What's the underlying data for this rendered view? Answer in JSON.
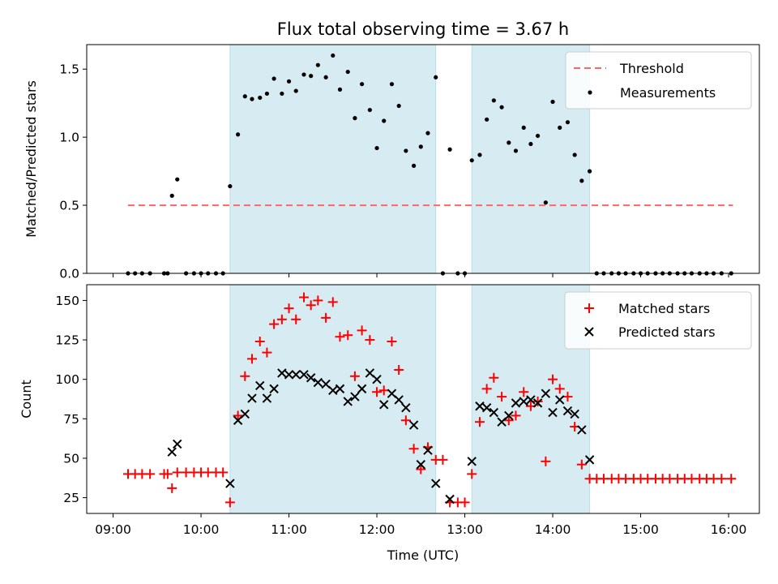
{
  "chart_data": [
    {
      "type": "scatter",
      "title": "Flux total observing time = 3.67 h",
      "xlabel": "",
      "ylabel": "Matched/Predicted stars",
      "xlim_hours": [
        8.7,
        16.35
      ],
      "ylim": [
        0,
        1.68
      ],
      "yticks": [
        0.0,
        0.5,
        1.0,
        1.5
      ],
      "ytick_labels": [
        "0.0",
        "0.5",
        "1.0",
        "1.5"
      ],
      "xticks_hours": [
        9,
        10,
        11,
        12,
        13,
        14,
        15,
        16
      ],
      "shaded_intervals_hours": [
        [
          10.33,
          12.67
        ],
        [
          13.08,
          14.42
        ]
      ],
      "shade_color": "#add8e6",
      "threshold": {
        "label": "Threshold",
        "value": 0.5,
        "x_range_hours": [
          9.17,
          16.05
        ],
        "color": "#ff6666"
      },
      "measurements": {
        "label": "Measurements",
        "color": "#000000",
        "x_hours": [
          9.17,
          9.25,
          9.33,
          9.42,
          9.58,
          9.62,
          9.67,
          9.73,
          9.83,
          9.92,
          10.0,
          10.08,
          10.17,
          10.25,
          10.33,
          10.42,
          10.5,
          10.58,
          10.67,
          10.75,
          10.83,
          10.92,
          11.0,
          11.08,
          11.17,
          11.25,
          11.33,
          11.42,
          11.5,
          11.58,
          11.67,
          11.75,
          11.83,
          11.92,
          12.0,
          12.08,
          12.17,
          12.25,
          12.33,
          12.42,
          12.5,
          12.58,
          12.67,
          12.75,
          12.83,
          12.92,
          13.0,
          13.08,
          13.17,
          13.25,
          13.33,
          13.42,
          13.5,
          13.58,
          13.67,
          13.75,
          13.83,
          13.92,
          14.0,
          14.08,
          14.17,
          14.25,
          14.33,
          14.42,
          14.5,
          14.58,
          14.67,
          14.75,
          14.83,
          14.92,
          15.0,
          15.08,
          15.17,
          15.25,
          15.33,
          15.42,
          15.5,
          15.58,
          15.67,
          15.75,
          15.83,
          15.92,
          16.03
        ],
        "y": [
          0,
          0,
          0,
          0,
          0,
          0,
          0.57,
          0.69,
          0,
          0,
          0,
          0,
          0,
          0,
          0.64,
          1.02,
          1.3,
          1.28,
          1.29,
          1.32,
          1.43,
          1.32,
          1.41,
          1.34,
          1.46,
          1.45,
          1.53,
          1.44,
          1.6,
          1.35,
          1.48,
          1.14,
          1.39,
          1.2,
          0.92,
          1.12,
          1.39,
          1.23,
          0.9,
          0.79,
          0.93,
          1.03,
          1.44,
          0,
          0.91,
          0,
          0,
          0.83,
          0.87,
          1.13,
          1.27,
          1.22,
          0.96,
          0.9,
          1.07,
          0.95,
          1.01,
          0.52,
          1.26,
          1.07,
          1.11,
          0.87,
          0.68,
          0.75,
          0,
          0,
          0,
          0,
          0,
          0,
          0,
          0,
          0,
          0,
          0,
          0,
          0,
          0,
          0,
          0,
          0,
          0,
          0
        ]
      },
      "legend_position": "upper right"
    },
    {
      "type": "scatter",
      "title": "",
      "xlabel": "Time (UTC)",
      "ylabel": "Count",
      "xlim_hours": [
        8.7,
        16.35
      ],
      "ylim": [
        15,
        160
      ],
      "yticks": [
        25,
        50,
        75,
        100,
        125,
        150
      ],
      "ytick_labels": [
        "25",
        "50",
        "75",
        "100",
        "125",
        "150"
      ],
      "xticks_hours": [
        9,
        10,
        11,
        12,
        13,
        14,
        15,
        16
      ],
      "xtick_labels": [
        "09:00",
        "10:00",
        "11:00",
        "12:00",
        "13:00",
        "14:00",
        "15:00",
        "16:00"
      ],
      "shaded_intervals_hours": [
        [
          10.33,
          12.67
        ],
        [
          13.08,
          14.42
        ]
      ],
      "shade_color": "#add8e6",
      "series": [
        {
          "name": "Matched stars",
          "marker": "plus",
          "color": "#ff0000",
          "points": [
            [
              9.17,
              40
            ],
            [
              9.25,
              40
            ],
            [
              9.33,
              40
            ],
            [
              9.42,
              40
            ],
            [
              9.58,
              40
            ],
            [
              9.62,
              40
            ],
            [
              9.67,
              31
            ],
            [
              9.73,
              41
            ],
            [
              9.83,
              41
            ],
            [
              9.92,
              41
            ],
            [
              10.0,
              41
            ],
            [
              10.08,
              41
            ],
            [
              10.17,
              41
            ],
            [
              10.25,
              41
            ],
            [
              10.33,
              22
            ],
            [
              10.42,
              77
            ],
            [
              10.5,
              102
            ],
            [
              10.58,
              113
            ],
            [
              10.67,
              124
            ],
            [
              10.75,
              117
            ],
            [
              10.83,
              135
            ],
            [
              10.92,
              138
            ],
            [
              11.0,
              145
            ],
            [
              11.08,
              138
            ],
            [
              11.17,
              152
            ],
            [
              11.25,
              147
            ],
            [
              11.33,
              150
            ],
            [
              11.42,
              139
            ],
            [
              11.5,
              149
            ],
            [
              11.58,
              127
            ],
            [
              11.67,
              128
            ],
            [
              11.75,
              102
            ],
            [
              11.83,
              131
            ],
            [
              11.92,
              125
            ],
            [
              12.0,
              92
            ],
            [
              12.08,
              93
            ],
            [
              12.17,
              124
            ],
            [
              12.25,
              106
            ],
            [
              12.33,
              74
            ],
            [
              12.42,
              56
            ],
            [
              12.5,
              43
            ],
            [
              12.58,
              57
            ],
            [
              12.67,
              49
            ],
            [
              12.75,
              49
            ],
            [
              12.83,
              22
            ],
            [
              12.92,
              22
            ],
            [
              13.0,
              22
            ],
            [
              13.08,
              40
            ],
            [
              13.17,
              73
            ],
            [
              13.25,
              94
            ],
            [
              13.33,
              101
            ],
            [
              13.42,
              89
            ],
            [
              13.5,
              74
            ],
            [
              13.58,
              77
            ],
            [
              13.67,
              92
            ],
            [
              13.75,
              83
            ],
            [
              13.83,
              86
            ],
            [
              13.92,
              48
            ],
            [
              14.0,
              100
            ],
            [
              14.08,
              94
            ],
            [
              14.17,
              89
            ],
            [
              14.25,
              70
            ],
            [
              14.33,
              46
            ],
            [
              14.42,
              37
            ],
            [
              14.5,
              37
            ],
            [
              14.58,
              37
            ],
            [
              14.67,
              37
            ],
            [
              14.75,
              37
            ],
            [
              14.83,
              37
            ],
            [
              14.92,
              37
            ],
            [
              15.0,
              37
            ],
            [
              15.08,
              37
            ],
            [
              15.17,
              37
            ],
            [
              15.25,
              37
            ],
            [
              15.33,
              37
            ],
            [
              15.42,
              37
            ],
            [
              15.5,
              37
            ],
            [
              15.58,
              37
            ],
            [
              15.67,
              37
            ],
            [
              15.75,
              37
            ],
            [
              15.83,
              37
            ],
            [
              15.92,
              37
            ],
            [
              16.03,
              37
            ]
          ]
        },
        {
          "name": "Predicted stars",
          "marker": "x",
          "color": "#000000",
          "points": [
            [
              9.67,
              54
            ],
            [
              9.73,
              59
            ],
            [
              10.33,
              34
            ],
            [
              10.42,
              74
            ],
            [
              10.5,
              78
            ],
            [
              10.58,
              88
            ],
            [
              10.67,
              96
            ],
            [
              10.75,
              88
            ],
            [
              10.83,
              94
            ],
            [
              10.92,
              104
            ],
            [
              11.0,
              103
            ],
            [
              11.08,
              103
            ],
            [
              11.17,
              103
            ],
            [
              11.25,
              101
            ],
            [
              11.33,
              98
            ],
            [
              11.42,
              97
            ],
            [
              11.5,
              93
            ],
            [
              11.58,
              94
            ],
            [
              11.67,
              86
            ],
            [
              11.75,
              89
            ],
            [
              11.83,
              94
            ],
            [
              11.92,
              104
            ],
            [
              12.0,
              100
            ],
            [
              12.08,
              84
            ],
            [
              12.17,
              91
            ],
            [
              12.25,
              87
            ],
            [
              12.33,
              82
            ],
            [
              12.42,
              71
            ],
            [
              12.5,
              46
            ],
            [
              12.58,
              55
            ],
            [
              12.67,
              34
            ],
            [
              12.83,
              24
            ],
            [
              13.08,
              48
            ],
            [
              13.17,
              83
            ],
            [
              13.25,
              82
            ],
            [
              13.33,
              79
            ],
            [
              13.42,
              73
            ],
            [
              13.5,
              77
            ],
            [
              13.58,
              85
            ],
            [
              13.67,
              86
            ],
            [
              13.75,
              87
            ],
            [
              13.83,
              85
            ],
            [
              13.92,
              91
            ],
            [
              14.0,
              79
            ],
            [
              14.08,
              87
            ],
            [
              14.17,
              80
            ],
            [
              14.25,
              78
            ],
            [
              14.33,
              68
            ],
            [
              14.42,
              49
            ]
          ]
        }
      ],
      "legend_position": "upper right"
    }
  ]
}
